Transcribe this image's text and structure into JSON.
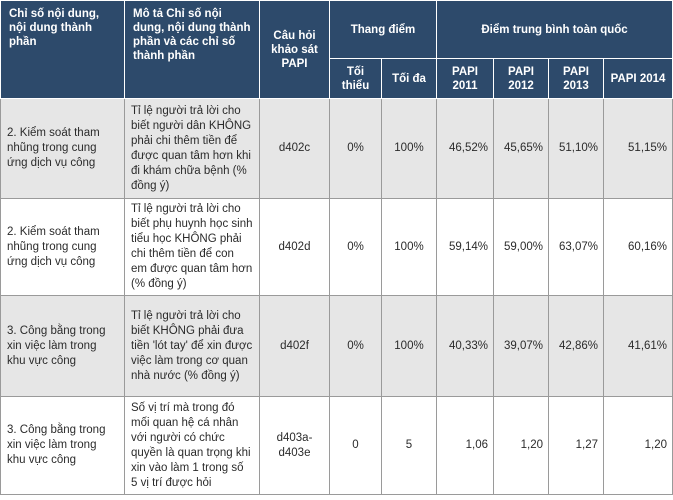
{
  "headers": {
    "col1": "Chỉ số nội dung, nội dung thành phần",
    "col2": "Mô tả Chỉ số nội dung, nội dung thành phần và các chỉ số thành phần",
    "col3": "Câu hỏi khảo sát PAPI",
    "scale": "Thang điểm",
    "scale_min": "Tối thiểu",
    "scale_max": "Tối đa",
    "national": "Điểm trung bình toàn quốc",
    "years": [
      "PAPI 2011",
      "PAPI 2012",
      "PAPI 2013",
      "PAPI 2014"
    ]
  },
  "rows": [
    {
      "indicator": "2. Kiểm soát tham nhũng trong cung ứng dịch vụ công",
      "description": "Tỉ lệ người trả lời cho biết người dân KHÔNG phải chi thêm tiền để được quan tâm hơn khi đi khám chữa bệnh (% đồng ý)",
      "question": "d402c",
      "min": "0%",
      "max": "100%",
      "values": [
        "46,52%",
        "45,65%",
        "51,10%",
        "51,15%"
      ]
    },
    {
      "indicator": "2. Kiểm soát tham nhũng trong cung ứng dịch vụ công",
      "description": "Tỉ lệ người trả lời cho biết phụ huynh học sinh tiểu học KHÔNG phải chi thêm tiền để con em được quan tâm hơn (% đồng ý)",
      "question": "d402d",
      "min": "0%",
      "max": "100%",
      "values": [
        "59,14%",
        "59,00%",
        "63,07%",
        "60,16%"
      ]
    },
    {
      "indicator": "3. Công bằng trong xin việc làm trong khu vực công",
      "description": "Tỉ lệ người trả lời cho biết KHÔNG phải đưa tiền 'lót tay' để xin được việc làm trong cơ quan nhà nước (% đồng ý)",
      "question": "d402f",
      "min": "0%",
      "max": "100%",
      "values": [
        "40,33%",
        "39,07%",
        "42,86%",
        "41,61%"
      ]
    },
    {
      "indicator": "3. Công bằng trong xin việc làm trong khu vực công",
      "description": "Số vị trí mà trong đó mối quan hệ cá nhân với người có chức quyền là quan trọng khi xin vào làm 1 trong số 5 vị trí được hỏi",
      "question": "d403a-d403e",
      "min": "0",
      "max": "5",
      "values": [
        "1,06",
        "1,20",
        "1,27",
        "1,20"
      ]
    }
  ]
}
